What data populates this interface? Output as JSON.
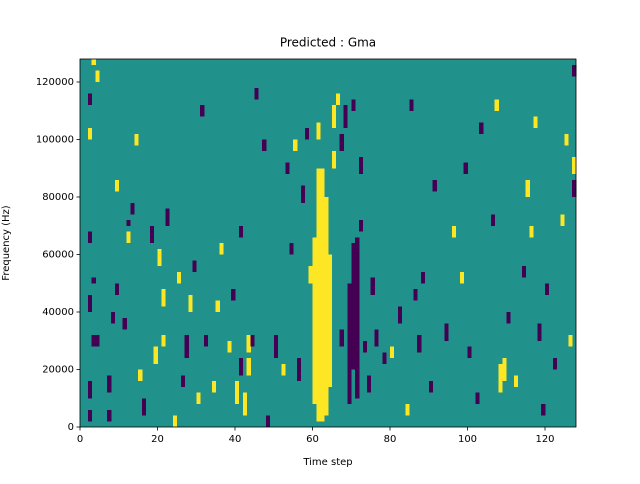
{
  "chart_data": {
    "type": "heatmap",
    "title": "Predicted : Gma",
    "xlabel": "Time step",
    "ylabel": "Frequency (Hz)",
    "xlim": [
      0,
      128
    ],
    "ylim": [
      0,
      128000
    ],
    "xticks": [
      0,
      20,
      40,
      60,
      80,
      100,
      120
    ],
    "yticks": [
      0,
      20000,
      40000,
      60000,
      80000,
      100000,
      120000
    ],
    "zlim": [
      -1,
      1
    ],
    "colors": [
      "#440154",
      "#21918c",
      "#fde725"
    ],
    "fill_value": 0,
    "bin_width": 1,
    "x": [
      60,
      61,
      62,
      63,
      64,
      61,
      69,
      70,
      71,
      2,
      2,
      3,
      4,
      2,
      3,
      2,
      2,
      2,
      3,
      4,
      7,
      7,
      8,
      9,
      9,
      11,
      12,
      12,
      13,
      14,
      16,
      15,
      18,
      19,
      20,
      21,
      21,
      22,
      24,
      25,
      26,
      27,
      28,
      29,
      30,
      31,
      32,
      34,
      35,
      36,
      38,
      39,
      40,
      41,
      41,
      42,
      43,
      43,
      44,
      45,
      47,
      48,
      50,
      52,
      53,
      54,
      55,
      56,
      57,
      58,
      59,
      65,
      65,
      66,
      67,
      67,
      68,
      70,
      72,
      72,
      73,
      74,
      75,
      76,
      78,
      80,
      82,
      84,
      85,
      86,
      87,
      88,
      90,
      91,
      94,
      96,
      98,
      99,
      100,
      102,
      103,
      106,
      107,
      108,
      109,
      110,
      112,
      114,
      115,
      116,
      117,
      118,
      119,
      120,
      122,
      124,
      125,
      126,
      127,
      127,
      127
    ],
    "y": [
      8000,
      2000,
      2000,
      4000,
      14000,
      100000,
      8000,
      20000,
      10000,
      2000,
      10000,
      28000,
      28000,
      40000,
      50000,
      64000,
      112000,
      100000,
      126000,
      120000,
      2000,
      12000,
      36000,
      46000,
      82000,
      34000,
      64000,
      70000,
      74000,
      98000,
      4000,
      16000,
      64000,
      22000,
      56000,
      28000,
      42000,
      70000,
      0,
      50000,
      14000,
      24000,
      40000,
      54000,
      8000,
      108000,
      28000,
      12000,
      40000,
      60000,
      26000,
      44000,
      8000,
      18000,
      66000,
      4000,
      18000,
      26000,
      28000,
      114000,
      96000,
      0,
      24000,
      18000,
      88000,
      60000,
      96000,
      16000,
      78000,
      100000,
      50000,
      90000,
      104000,
      112000,
      28000,
      96000,
      104000,
      110000,
      88000,
      68000,
      26000,
      12000,
      46000,
      28000,
      22000,
      24000,
      36000,
      4000,
      110000,
      44000,
      26000,
      50000,
      12000,
      82000,
      30000,
      66000,
      50000,
      88000,
      24000,
      8000,
      102000,
      70000,
      110000,
      12000,
      16000,
      36000,
      14000,
      52000,
      80000,
      66000,
      104000,
      30000,
      4000,
      46000,
      20000,
      70000,
      98000,
      28000,
      80000,
      88000,
      122000
    ],
    "heights": [
      58000,
      88000,
      88000,
      76000,
      46000,
      6000,
      42000,
      44000,
      56000,
      4000,
      6000,
      4000,
      4000,
      6000,
      2000,
      4000,
      4000,
      4000,
      2000,
      4000,
      4000,
      6000,
      4000,
      4000,
      4000,
      4000,
      4000,
      2000,
      4000,
      4000,
      6000,
      4000,
      6000,
      6000,
      6000,
      4000,
      6000,
      6000,
      4000,
      4000,
      4000,
      8000,
      6000,
      4000,
      4000,
      4000,
      4000,
      4000,
      4000,
      4000,
      4000,
      4000,
      8000,
      6000,
      4000,
      8000,
      6000,
      6000,
      4000,
      4000,
      4000,
      4000,
      8000,
      4000,
      4000,
      4000,
      4000,
      8000,
      6000,
      4000,
      6000,
      6000,
      8000,
      4000,
      6000,
      6000,
      8000,
      4000,
      6000,
      4000,
      4000,
      6000,
      6000,
      6000,
      4000,
      4000,
      6000,
      4000,
      4000,
      4000,
      6000,
      4000,
      4000,
      4000,
      6000,
      4000,
      4000,
      4000,
      4000,
      4000,
      4000,
      4000,
      4000,
      10000,
      8000,
      4000,
      4000,
      4000,
      6000,
      4000,
      4000,
      6000,
      4000,
      4000,
      4000,
      4000,
      4000,
      4000,
      6000,
      6000,
      4000
    ],
    "values": [
      1,
      1,
      1,
      1,
      1,
      1,
      -1,
      -1,
      -1,
      -1,
      -1,
      -1,
      -1,
      -1,
      -1,
      -1,
      -1,
      1,
      1,
      1,
      -1,
      -1,
      -1,
      -1,
      1,
      -1,
      1,
      -1,
      -1,
      1,
      -1,
      1,
      -1,
      1,
      1,
      1,
      1,
      -1,
      1,
      1,
      -1,
      -1,
      1,
      -1,
      1,
      -1,
      -1,
      1,
      1,
      1,
      1,
      -1,
      1,
      -1,
      -1,
      1,
      1,
      1,
      -1,
      -1,
      -1,
      -1,
      -1,
      1,
      -1,
      -1,
      1,
      -1,
      -1,
      -1,
      1,
      1,
      1,
      1,
      -1,
      -1,
      -1,
      -1,
      -1,
      -1,
      -1,
      -1,
      -1,
      -1,
      -1,
      1,
      -1,
      1,
      -1,
      -1,
      -1,
      -1,
      -1,
      -1,
      -1,
      1,
      1,
      -1,
      -1,
      -1,
      -1,
      -1,
      1,
      1,
      1,
      -1,
      1,
      -1,
      1,
      1,
      1,
      -1,
      -1,
      -1,
      -1,
      1,
      1,
      1,
      -1,
      1,
      -1
    ]
  }
}
